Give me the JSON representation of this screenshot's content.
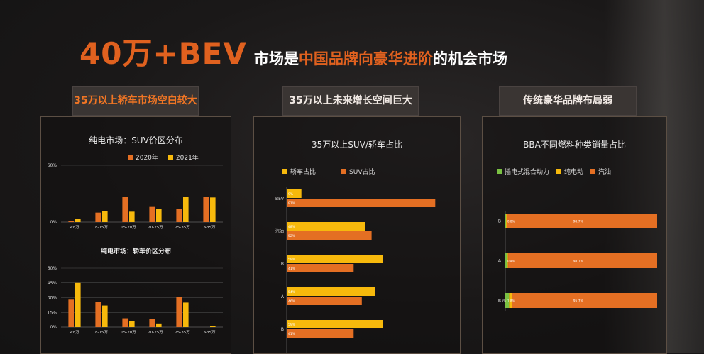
{
  "headline": {
    "big": "40万+BEV",
    "mid": "市场是",
    "accent": "中国品牌向豪华进阶",
    "end": "的机会市场"
  },
  "tags": [
    {
      "label": "35万以上轿车市场空白较大"
    },
    {
      "label": "35万以上未来增长空间巨大"
    },
    {
      "label": "传统豪华品牌布局弱"
    }
  ],
  "colors": {
    "orange": "#e46f23",
    "yellow": "#f7b90c",
    "green": "#7ac143"
  },
  "chart_data": [
    {
      "type": "bar",
      "title": "纯电市场：SUV价区分布",
      "categories": [
        "<8万",
        "8-15万",
        "15-20万",
        "20-25万",
        "25-35万",
        ">35万"
      ],
      "series": [
        {
          "name": "2020年",
          "values": [
            1,
            10,
            27,
            16,
            14,
            27
          ]
        },
        {
          "name": "2021年",
          "values": [
            3,
            12,
            11,
            14,
            27,
            26
          ]
        }
      ],
      "yticks": [
        "0%",
        "60%"
      ],
      "ylim": [
        0,
        60
      ]
    },
    {
      "type": "bar",
      "title": "纯电市场：轿车价区分布",
      "categories": [
        "<8万",
        "8-15万",
        "15-20万",
        "20-25万",
        "25-35万",
        ">35万"
      ],
      "series": [
        {
          "name": "2020年",
          "values": [
            28,
            26,
            9,
            8,
            31,
            0
          ]
        },
        {
          "name": "2021年",
          "values": [
            45,
            22,
            6,
            3,
            25,
            1
          ]
        }
      ],
      "yticks": [
        "0%",
        "15%",
        "30%",
        "45%",
        "60%"
      ],
      "ylim": [
        0,
        60
      ]
    },
    {
      "type": "bar",
      "orientation": "horizontal",
      "title": "35万以上SUV/轿车占比",
      "categories": [
        "BEV",
        "汽油",
        "B",
        "A",
        "B"
      ],
      "series": [
        {
          "name": "轿车占比",
          "values": [
            9,
            48,
            59,
            54,
            59
          ],
          "labels": [
            "9%",
            "48%",
            "59%",
            "54%",
            "59%"
          ]
        },
        {
          "name": "SUV占比",
          "values": [
            91,
            52,
            41,
            46,
            41
          ],
          "labels": [
            "91%",
            "52%",
            "41%",
            "46%",
            "41%"
          ]
        }
      ],
      "xlim": [
        0,
        100
      ]
    },
    {
      "type": "bar",
      "orientation": "horizontal",
      "stacked": true,
      "title": "BBA不同燃料种类销量占比",
      "categories": [
        "B",
        "A",
        "B"
      ],
      "series": [
        {
          "name": "插电式混合动力",
          "values": [
            0.5,
            1.5,
            2.5
          ]
        },
        {
          "name": "纯电动",
          "values": [
            0.8,
            0.4,
            1.8
          ]
        },
        {
          "name": "汽油",
          "values": [
            98.7,
            98.1,
            95.7
          ]
        }
      ],
      "value_labels": [
        "0.8%",
        "0.4%",
        "1.8%"
      ],
      "fuel_labels": [
        "98.7%",
        "98.1%",
        "95.7%"
      ],
      "extra_labels": [
        "2.5%"
      ],
      "xlim": [
        0,
        100
      ]
    }
  ]
}
